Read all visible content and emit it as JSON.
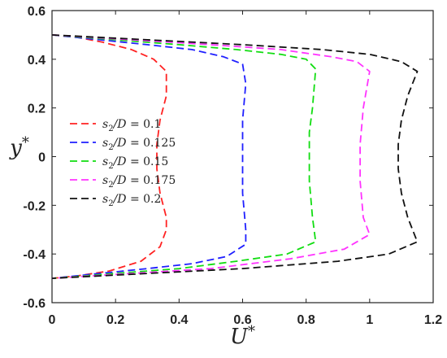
{
  "chart_data": {
    "type": "line",
    "xlabel": "U*",
    "ylabel": "y*",
    "xlim": [
      0,
      1.2
    ],
    "ylim": [
      -0.6,
      0.6
    ],
    "xticks": [
      "0",
      "0.2",
      "0.4",
      "0.6",
      "0.8",
      "1",
      "1.2"
    ],
    "yticks": [
      "0.6",
      "0.4",
      "0.2",
      "0",
      "-0.2",
      "-0.4",
      "-0.6"
    ],
    "grid": false,
    "legend_position": "middle-left",
    "series": [
      {
        "name": "s2/D = 0.1",
        "label_var": "s",
        "label_sub": "2",
        "label_rest": "/D",
        "label_value": "0.1",
        "color": "#ff2222",
        "points": [
          [
            0.0,
            0.5
          ],
          [
            0.08,
            0.49
          ],
          [
            0.16,
            0.47
          ],
          [
            0.25,
            0.44
          ],
          [
            0.32,
            0.4
          ],
          [
            0.36,
            0.35
          ],
          [
            0.36,
            0.25
          ],
          [
            0.34,
            0.15
          ],
          [
            0.33,
            0.05
          ],
          [
            0.33,
            -0.05
          ],
          [
            0.34,
            -0.15
          ],
          [
            0.36,
            -0.25
          ],
          [
            0.36,
            -0.3
          ],
          [
            0.34,
            -0.37
          ],
          [
            0.28,
            -0.43
          ],
          [
            0.18,
            -0.47
          ],
          [
            0.08,
            -0.49
          ],
          [
            0.0,
            -0.5
          ]
        ]
      },
      {
        "name": "s2/D = 0.125",
        "label_var": "s",
        "label_sub": "2",
        "label_rest": "/D",
        "label_value": "0.125",
        "color": "#1f1fff",
        "points": [
          [
            0.0,
            0.5
          ],
          [
            0.15,
            0.48
          ],
          [
            0.3,
            0.46
          ],
          [
            0.44,
            0.44
          ],
          [
            0.54,
            0.41
          ],
          [
            0.6,
            0.38
          ],
          [
            0.61,
            0.3
          ],
          [
            0.6,
            0.15
          ],
          [
            0.6,
            0.0
          ],
          [
            0.6,
            -0.15
          ],
          [
            0.61,
            -0.3
          ],
          [
            0.61,
            -0.36
          ],
          [
            0.55,
            -0.41
          ],
          [
            0.44,
            -0.44
          ],
          [
            0.3,
            -0.46
          ],
          [
            0.15,
            -0.48
          ],
          [
            0.0,
            -0.5
          ]
        ]
      },
      {
        "name": "s2/D = 0.15",
        "label_var": "s",
        "label_sub": "2",
        "label_rest": "/D",
        "label_value": "0.15",
        "color": "#11dd11",
        "points": [
          [
            0.0,
            0.5
          ],
          [
            0.2,
            0.48
          ],
          [
            0.4,
            0.46
          ],
          [
            0.58,
            0.44
          ],
          [
            0.72,
            0.42
          ],
          [
            0.8,
            0.4
          ],
          [
            0.83,
            0.36
          ],
          [
            0.82,
            0.2
          ],
          [
            0.81,
            0.1
          ],
          [
            0.81,
            -0.1
          ],
          [
            0.82,
            -0.25
          ],
          [
            0.83,
            -0.35
          ],
          [
            0.74,
            -0.4
          ],
          [
            0.58,
            -0.43
          ],
          [
            0.4,
            -0.46
          ],
          [
            0.2,
            -0.48
          ],
          [
            0.0,
            -0.5
          ]
        ]
      },
      {
        "name": "s2/D = 0.175",
        "label_var": "s",
        "label_sub": "2",
        "label_rest": "/D",
        "label_value": "0.175",
        "color": "#ff33ff",
        "points": [
          [
            0.0,
            0.5
          ],
          [
            0.25,
            0.48
          ],
          [
            0.5,
            0.46
          ],
          [
            0.72,
            0.44
          ],
          [
            0.88,
            0.41
          ],
          [
            0.96,
            0.39
          ],
          [
            1.0,
            0.35
          ],
          [
            0.98,
            0.2
          ],
          [
            0.97,
            0.05
          ],
          [
            0.97,
            -0.1
          ],
          [
            0.98,
            -0.25
          ],
          [
            1.0,
            -0.32
          ],
          [
            0.92,
            -0.38
          ],
          [
            0.75,
            -0.42
          ],
          [
            0.5,
            -0.46
          ],
          [
            0.25,
            -0.48
          ],
          [
            0.0,
            -0.5
          ]
        ]
      },
      {
        "name": "s2/D = 0.2",
        "label_var": "s",
        "label_sub": "2",
        "label_rest": "/D",
        "label_value": "0.2",
        "color": "#111111",
        "points": [
          [
            0.0,
            0.5
          ],
          [
            0.3,
            0.48
          ],
          [
            0.6,
            0.46
          ],
          [
            0.85,
            0.44
          ],
          [
            1.0,
            0.42
          ],
          [
            1.1,
            0.39
          ],
          [
            1.15,
            0.35
          ],
          [
            1.12,
            0.25
          ],
          [
            1.1,
            0.15
          ],
          [
            1.09,
            0.05
          ],
          [
            1.09,
            -0.05
          ],
          [
            1.1,
            -0.15
          ],
          [
            1.12,
            -0.25
          ],
          [
            1.15,
            -0.35
          ],
          [
            1.06,
            -0.4
          ],
          [
            0.9,
            -0.43
          ],
          [
            0.6,
            -0.46
          ],
          [
            0.3,
            -0.48
          ],
          [
            0.0,
            -0.5
          ]
        ]
      }
    ]
  }
}
